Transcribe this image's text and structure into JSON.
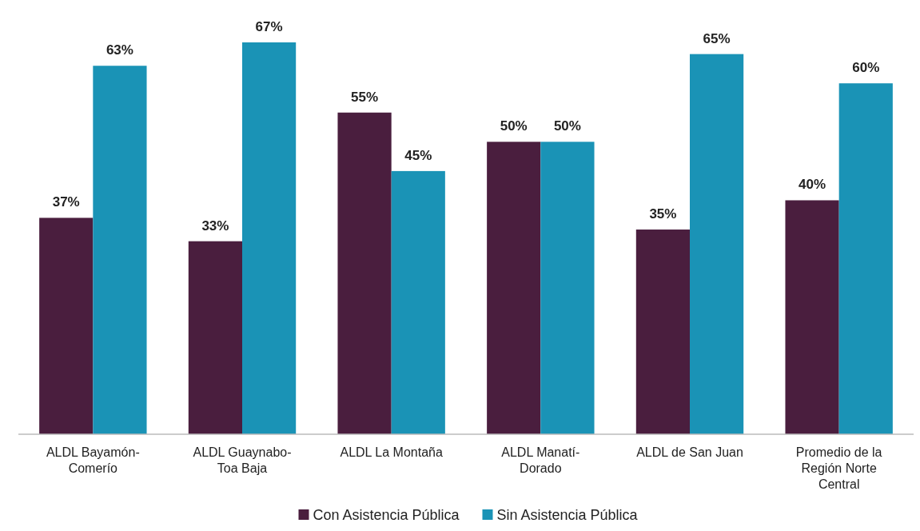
{
  "chart_data": {
    "type": "bar",
    "categories": [
      "ALDL Bayamón-\nComerío",
      "ALDL Guaynabo-\nToa Baja",
      "ALDL La Montaña",
      "ALDL Manatí-\nDorado",
      "ALDL de San Juan",
      "Promedio de la\nRegión Norte\nCentral"
    ],
    "series": [
      {
        "name": "Con Asistencia Pública",
        "color": "#4a1e3e",
        "values": [
          37,
          33,
          55,
          50,
          35,
          40
        ],
        "value_labels": [
          "37%",
          "33%",
          "55%",
          "50%",
          "35%",
          "40%"
        ]
      },
      {
        "name": "Sin Asistencia Pública",
        "color": "#1a93b6",
        "values": [
          63,
          67,
          45,
          50,
          65,
          60
        ],
        "value_labels": [
          "63%",
          "67%",
          "45%",
          "50%",
          "65%",
          "60%"
        ]
      }
    ],
    "legend": "bottom"
  }
}
